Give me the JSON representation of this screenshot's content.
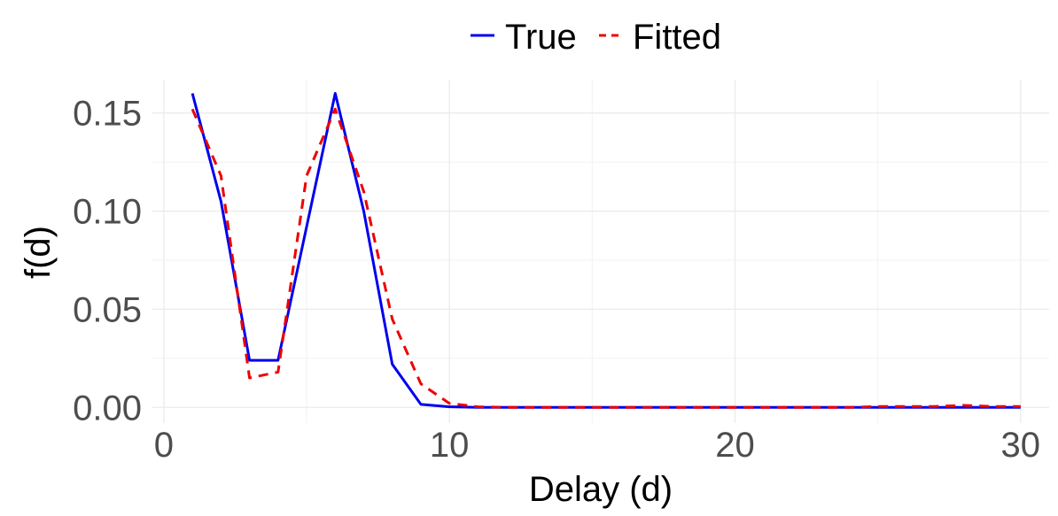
{
  "chart_data": {
    "type": "line",
    "title": "",
    "xlabel": "Delay (d)",
    "ylabel": "f(d)",
    "xlim": [
      -0.4,
      31.0
    ],
    "ylim": [
      -0.008,
      0.167
    ],
    "x_ticks": [
      0,
      10,
      20,
      30
    ],
    "x_tick_labels": [
      "0",
      "10",
      "20",
      "30"
    ],
    "y_ticks": [
      0.0,
      0.05,
      0.1,
      0.15
    ],
    "y_tick_labels": [
      "0.00",
      "0.05",
      "0.10",
      "0.15"
    ],
    "x_minor_ticks": [
      5,
      15,
      25
    ],
    "y_minor_ticks": [
      0.025,
      0.075,
      0.125
    ],
    "grid": true,
    "legend_position": "top",
    "series": [
      {
        "name": "True",
        "color": "#0000ee",
        "dash": "solid",
        "x": [
          1,
          2,
          3,
          4,
          5,
          6,
          7,
          8,
          9,
          10,
          11,
          12,
          13,
          14,
          15,
          16,
          17,
          18,
          19,
          20,
          21,
          22,
          23,
          24,
          25,
          26,
          27,
          28,
          29,
          30
        ],
        "y": [
          0.16,
          0.105,
          0.024,
          0.024,
          0.092,
          0.16,
          0.1,
          0.022,
          0.0015,
          0.0003,
          0,
          0,
          0,
          0,
          0,
          0,
          0,
          0,
          0,
          0,
          0,
          0,
          0,
          0,
          0,
          0,
          0,
          0,
          0,
          0
        ]
      },
      {
        "name": "Fitted",
        "color": "#ee0000",
        "dash": "dashed",
        "x": [
          1,
          2,
          3,
          4,
          5,
          6,
          7,
          8,
          9,
          10,
          11,
          12,
          13,
          14,
          15,
          16,
          17,
          18,
          19,
          20,
          21,
          22,
          23,
          24,
          25,
          26,
          27,
          28,
          29,
          30
        ],
        "y": [
          0.152,
          0.118,
          0.015,
          0.018,
          0.118,
          0.152,
          0.11,
          0.045,
          0.012,
          0.002,
          0.0003,
          0,
          0,
          0,
          0,
          0,
          0,
          0,
          0,
          0,
          0,
          0,
          0,
          0,
          0.0005,
          0.0005,
          0.0005,
          0.001,
          0.0005,
          0.0005
        ]
      }
    ]
  }
}
